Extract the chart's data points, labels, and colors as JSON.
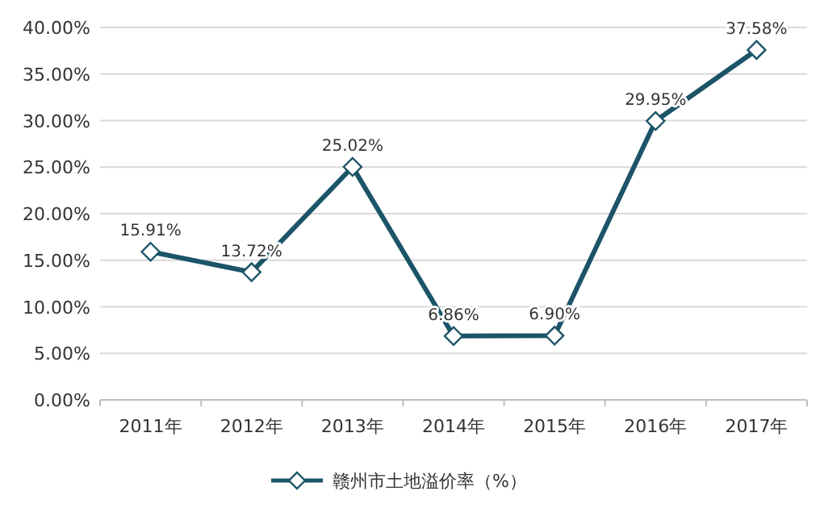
{
  "chart_data": {
    "type": "line",
    "categories": [
      "2011年",
      "2012年",
      "2013年",
      "2014年",
      "2015年",
      "2016年",
      "2017年"
    ],
    "series": [
      {
        "name": "赣州市土地溢价率（%）",
        "color": "#1c5468",
        "values": [
          15.91,
          13.72,
          25.02,
          6.86,
          6.9,
          29.95,
          37.58
        ],
        "value_labels": [
          "15.91%",
          "13.72%",
          "25.02%",
          "6.86%",
          "6.90%",
          "29.95%",
          "37.58%"
        ]
      }
    ],
    "ylim": [
      0,
      40
    ],
    "yticks": [
      {
        "value": 0,
        "label": "0.00%"
      },
      {
        "value": 5,
        "label": "5.00%"
      },
      {
        "value": 10,
        "label": "10.00%"
      },
      {
        "value": 15,
        "label": "15.00%"
      },
      {
        "value": 20,
        "label": "20.00%"
      },
      {
        "value": 25,
        "label": "25.00%"
      },
      {
        "value": 30,
        "label": "30.00%"
      },
      {
        "value": 35,
        "label": "35.00%"
      },
      {
        "value": 40,
        "label": "40.00%"
      }
    ],
    "grid": "y",
    "legend": "bottom",
    "marker": "diamond",
    "line_style": "solid"
  }
}
